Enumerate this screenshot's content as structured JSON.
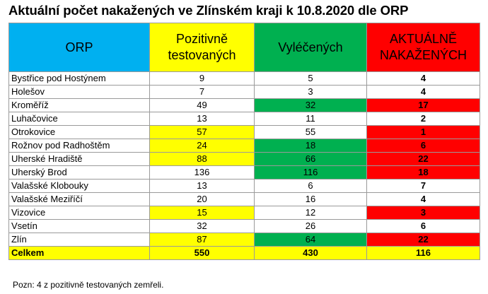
{
  "title": "Aktuální počet nakažených ve Zlínském kraji k 10.8.2020 dle ORP",
  "headers": {
    "orp": "ORP",
    "pozitivne": [
      "Pozitivně",
      "testovaných"
    ],
    "vyleceni": "Vyléčených",
    "aktualne": [
      "AKTUÁLNĚ",
      "NAKAŽENÝCH"
    ]
  },
  "colors": {
    "orp_header": "#00b0f0",
    "yellow": "#ffff00",
    "green": "#00b050",
    "red": "#ff0000"
  },
  "rows": [
    {
      "name": "Bystřice pod Hostýnem",
      "pozitivni": "9",
      "vyleceni": "5",
      "aktualne": "4",
      "hl": [
        "",
        "",
        ""
      ]
    },
    {
      "name": "Holešov",
      "pozitivni": "7",
      "vyleceni": "3",
      "aktualne": "4",
      "hl": [
        "",
        "",
        ""
      ]
    },
    {
      "name": "Kroměříž",
      "pozitivni": "49",
      "vyleceni": "32",
      "aktualne": "17",
      "hl": [
        "",
        "green",
        "red"
      ]
    },
    {
      "name": "Luhačovice",
      "pozitivni": "13",
      "vyleceni": "11",
      "aktualne": "2",
      "hl": [
        "",
        "",
        ""
      ]
    },
    {
      "name": "Otrokovice",
      "pozitivni": "57",
      "vyleceni": "55",
      "aktualne": "1",
      "hl": [
        "yellow",
        "",
        "red"
      ]
    },
    {
      "name": "Rožnov pod Radhoštěm",
      "pozitivni": "24",
      "vyleceni": "18",
      "aktualne": "6",
      "hl": [
        "yellow",
        "green",
        "red"
      ]
    },
    {
      "name": "Uherské Hradiště",
      "pozitivni": "88",
      "vyleceni": "66",
      "aktualne": "22",
      "hl": [
        "yellow",
        "green",
        "red"
      ]
    },
    {
      "name": "Uherský Brod",
      "pozitivni": "136",
      "vyleceni": "116",
      "aktualne": "18",
      "hl": [
        "",
        "green",
        "red"
      ]
    },
    {
      "name": "Valašské Klobouky",
      "pozitivni": "13",
      "vyleceni": "6",
      "aktualne": "7",
      "hl": [
        "",
        "",
        ""
      ]
    },
    {
      "name": "Valašské Meziříčí",
      "pozitivni": "20",
      "vyleceni": "16",
      "aktualne": "4",
      "hl": [
        "",
        "",
        ""
      ]
    },
    {
      "name": "Vizovice",
      "pozitivni": "15",
      "vyleceni": "12",
      "aktualne": "3",
      "hl": [
        "yellow",
        "",
        "red"
      ]
    },
    {
      "name": "Vsetín",
      "pozitivni": "32",
      "vyleceni": "26",
      "aktualne": "6",
      "hl": [
        "",
        "",
        ""
      ]
    },
    {
      "name": "Zlín",
      "pozitivni": "87",
      "vyleceni": "64",
      "aktualne": "22",
      "hl": [
        "yellow",
        "green",
        "red"
      ]
    }
  ],
  "total": {
    "name": "Celkem",
    "pozitivni": "550",
    "vyleceni": "430",
    "aktualne": "116"
  },
  "note": "Pozn: 4 z pozitivně testovaných zemřeli."
}
